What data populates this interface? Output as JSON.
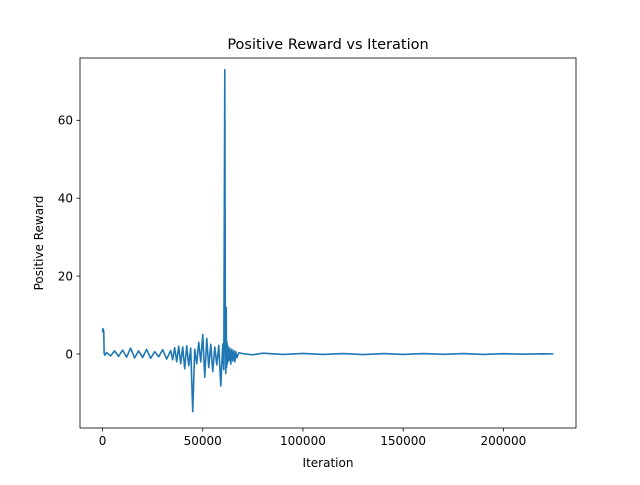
{
  "chart_data": {
    "type": "line",
    "title": "Positive Reward vs Iteration",
    "xlabel": "Iteration",
    "ylabel": "Positive Reward",
    "xlim": [
      -11250,
      236250
    ],
    "ylim": [
      -19,
      76
    ],
    "xticks": [
      0,
      50000,
      100000,
      150000,
      200000
    ],
    "xtick_labels": [
      "0",
      "50000",
      "100000",
      "150000",
      "200000"
    ],
    "yticks": [
      0,
      20,
      40,
      60
    ],
    "ytick_labels": [
      "0",
      "20",
      "40",
      "60"
    ],
    "grid": false,
    "legend": "none",
    "line_color": "#1f77b4",
    "series": [
      {
        "x": [
          0,
          200,
          400,
          600,
          800,
          1200,
          2000,
          4000,
          6000,
          8000,
          10000,
          12000,
          14000,
          16000,
          18000,
          20000,
          22000,
          24000,
          26000,
          28000,
          30000,
          32000,
          34000,
          35000,
          36000,
          37000,
          38000,
          39000,
          40000,
          41000,
          42000,
          43000,
          44000,
          45000,
          46000,
          47000,
          48000,
          49000,
          50000,
          51000,
          52000,
          53000,
          54000,
          55000,
          56000,
          57000,
          58000,
          59000,
          60000,
          60500,
          61000,
          61300,
          61500,
          61700,
          61900,
          62100,
          62300,
          62600,
          63000,
          63500,
          64000,
          64500,
          65000,
          65500,
          66000,
          66500,
          67000,
          68000,
          70000,
          75000,
          80000,
          90000,
          100000,
          110000,
          120000,
          130000,
          140000,
          150000,
          160000,
          170000,
          180000,
          190000,
          200000,
          210000,
          220000,
          225000
        ],
        "y": [
          5.5,
          6.5,
          6.2,
          5.8,
          0.2,
          -0.3,
          0.4,
          -0.5,
          0.8,
          -0.6,
          1.0,
          -0.8,
          1.5,
          -1.0,
          0.8,
          -0.9,
          1.2,
          -1.1,
          0.6,
          -0.7,
          1.1,
          -1.3,
          0.9,
          -1.5,
          1.6,
          -2.0,
          2.0,
          -2.5,
          1.8,
          -3.8,
          2.1,
          -3.0,
          1.5,
          -14.8,
          1.2,
          -2.5,
          3.0,
          -2.0,
          5.0,
          -6.0,
          4.0,
          -3.5,
          2.5,
          -4.5,
          1.8,
          -2.8,
          2.2,
          -8.2,
          2.6,
          -4.0,
          73.0,
          2.0,
          -5.0,
          12.0,
          -3.5,
          3.0,
          -2.5,
          2.0,
          -1.8,
          1.5,
          -2.6,
          1.2,
          -1.8,
          0.9,
          -2.0,
          0.6,
          -1.0,
          0.3,
          0.1,
          -0.2,
          0.2,
          -0.1,
          0.15,
          -0.1,
          0.1,
          -0.15,
          0.1,
          -0.1,
          0.12,
          -0.08,
          0.1,
          -0.1,
          0.08,
          -0.05,
          0.05,
          0.0
        ]
      }
    ]
  }
}
